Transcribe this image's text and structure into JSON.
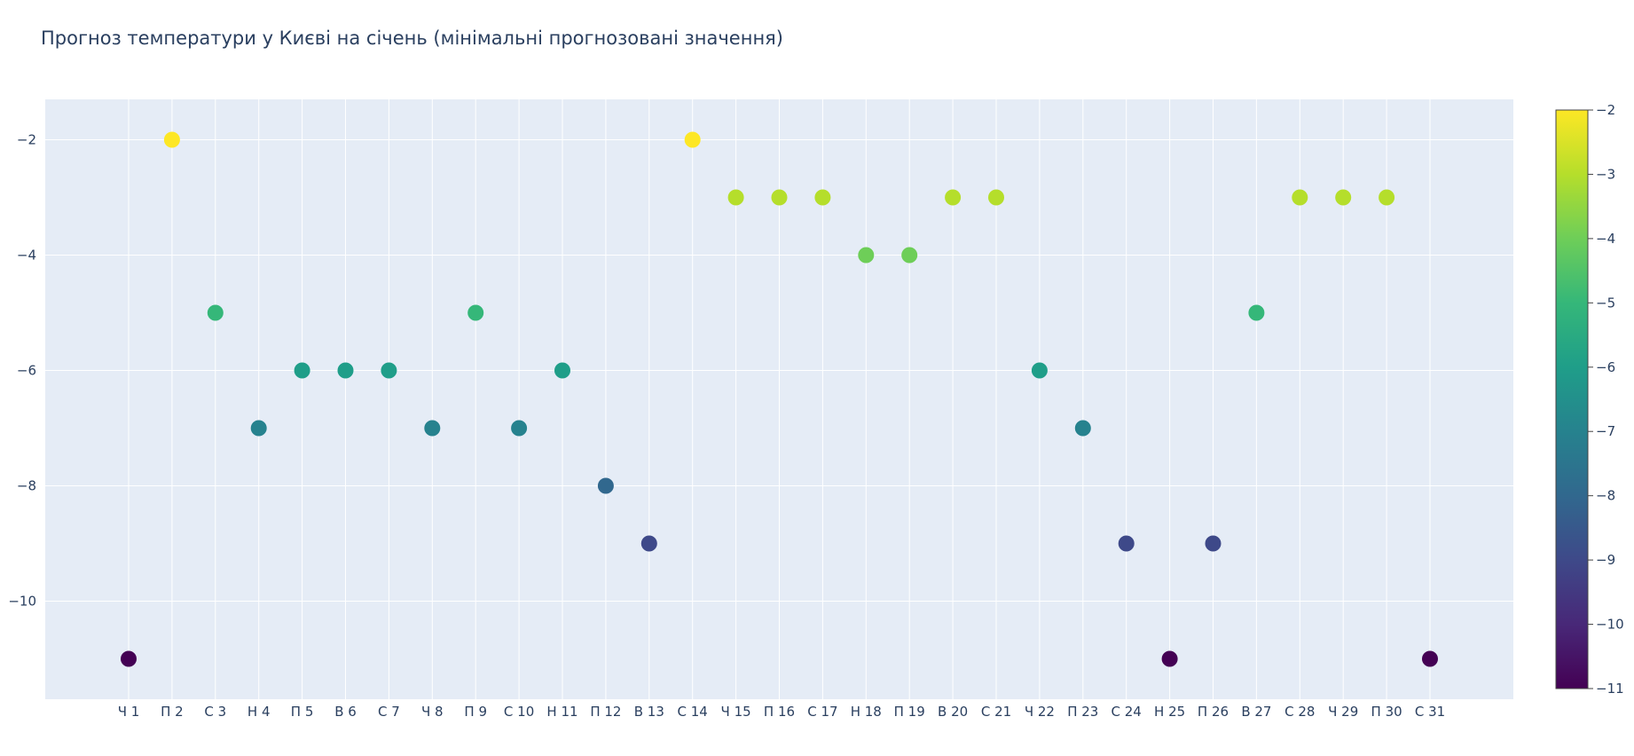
{
  "chart_data": {
    "type": "scatter",
    "title": "Прогноз температури у Києві на січень (мінімальні прогнозовані значення)",
    "xlabel": "",
    "ylabel": "",
    "categories": [
      "Ч 1",
      "П 2",
      "С 3",
      "Н 4",
      "П 5",
      "В 6",
      "С 7",
      "Ч 8",
      "П 9",
      "С 10",
      "Н 11",
      "П 12",
      "В 13",
      "С 14",
      "Ч 15",
      "П 16",
      "С 17",
      "Н 18",
      "П 19",
      "В 20",
      "С 21",
      "Ч 22",
      "П 23",
      "С 24",
      "Н 25",
      "П 26",
      "В 27",
      "С 28",
      "Ч 29",
      "П 30",
      "С 31"
    ],
    "values": [
      -11,
      -2,
      -5,
      -7,
      -6,
      -6,
      -6,
      -7,
      -5,
      -7,
      -6,
      -8,
      -9,
      -2,
      -3,
      -3,
      -3,
      -4,
      -4,
      -3,
      -3,
      -6,
      -7,
      -9,
      -11,
      -9,
      -5,
      -3,
      -3,
      -3,
      -11
    ],
    "ylim": [
      -11.7,
      -1.3
    ],
    "y_ticks": [
      "−2",
      "−4",
      "−6",
      "−8",
      "−10"
    ],
    "y_tick_values": [
      -2,
      -4,
      -6,
      -8,
      -10
    ],
    "grid": true,
    "colorscale": "Viridis",
    "colorbar": {
      "range": [
        -11,
        -2
      ],
      "ticks": [
        "−2",
        "−3",
        "−4",
        "−5",
        "−6",
        "−7",
        "−8",
        "−9",
        "−10",
        "−11"
      ],
      "tick_values": [
        -2,
        -3,
        -4,
        -5,
        -6,
        -7,
        -8,
        -9,
        -10,
        -11
      ]
    },
    "colors": {
      "plot_background": "#e5ecf6",
      "grid": "#ffffff",
      "text": "#2a3f5f"
    }
  }
}
